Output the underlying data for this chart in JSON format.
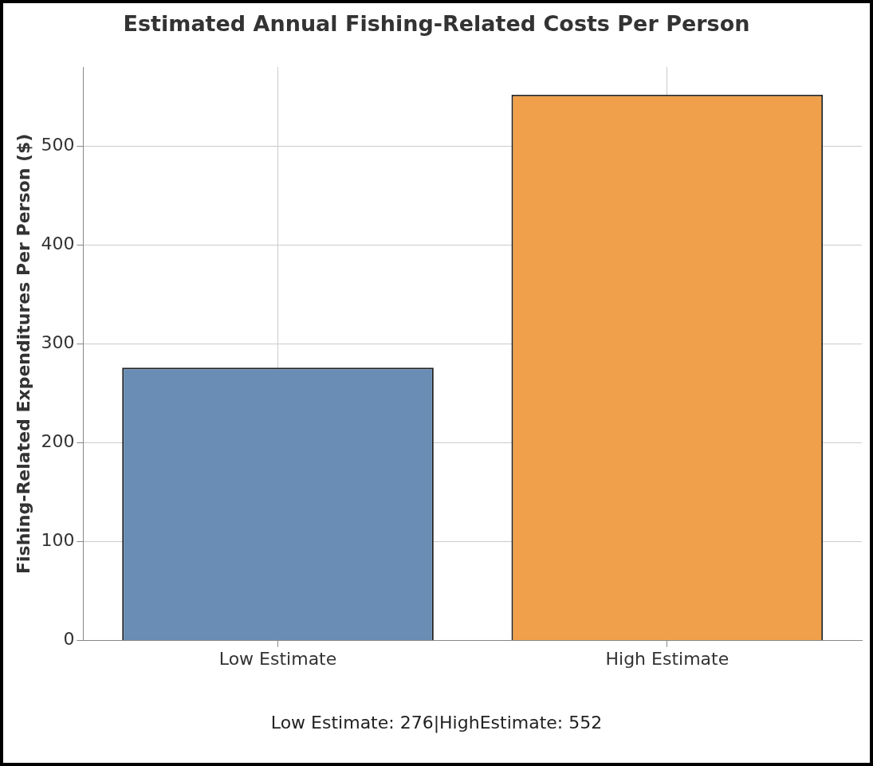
{
  "chart_data": {
    "type": "bar",
    "title": "Estimated Annual Fishing-Related Costs Per Person",
    "ylabel": "Fishing-Related Expenditures Per Person ($)",
    "categories": [
      "Low Estimate",
      "High Estimate"
    ],
    "values": [
      276,
      552
    ],
    "colors": [
      "#6a8db5",
      "#f0a04b"
    ],
    "ylim": [
      0,
      580
    ],
    "yticks": [
      0,
      100,
      200,
      300,
      400,
      500
    ],
    "grid": true,
    "annotations": [
      "Low Estimate: 276|HighEstimate: 552"
    ]
  }
}
